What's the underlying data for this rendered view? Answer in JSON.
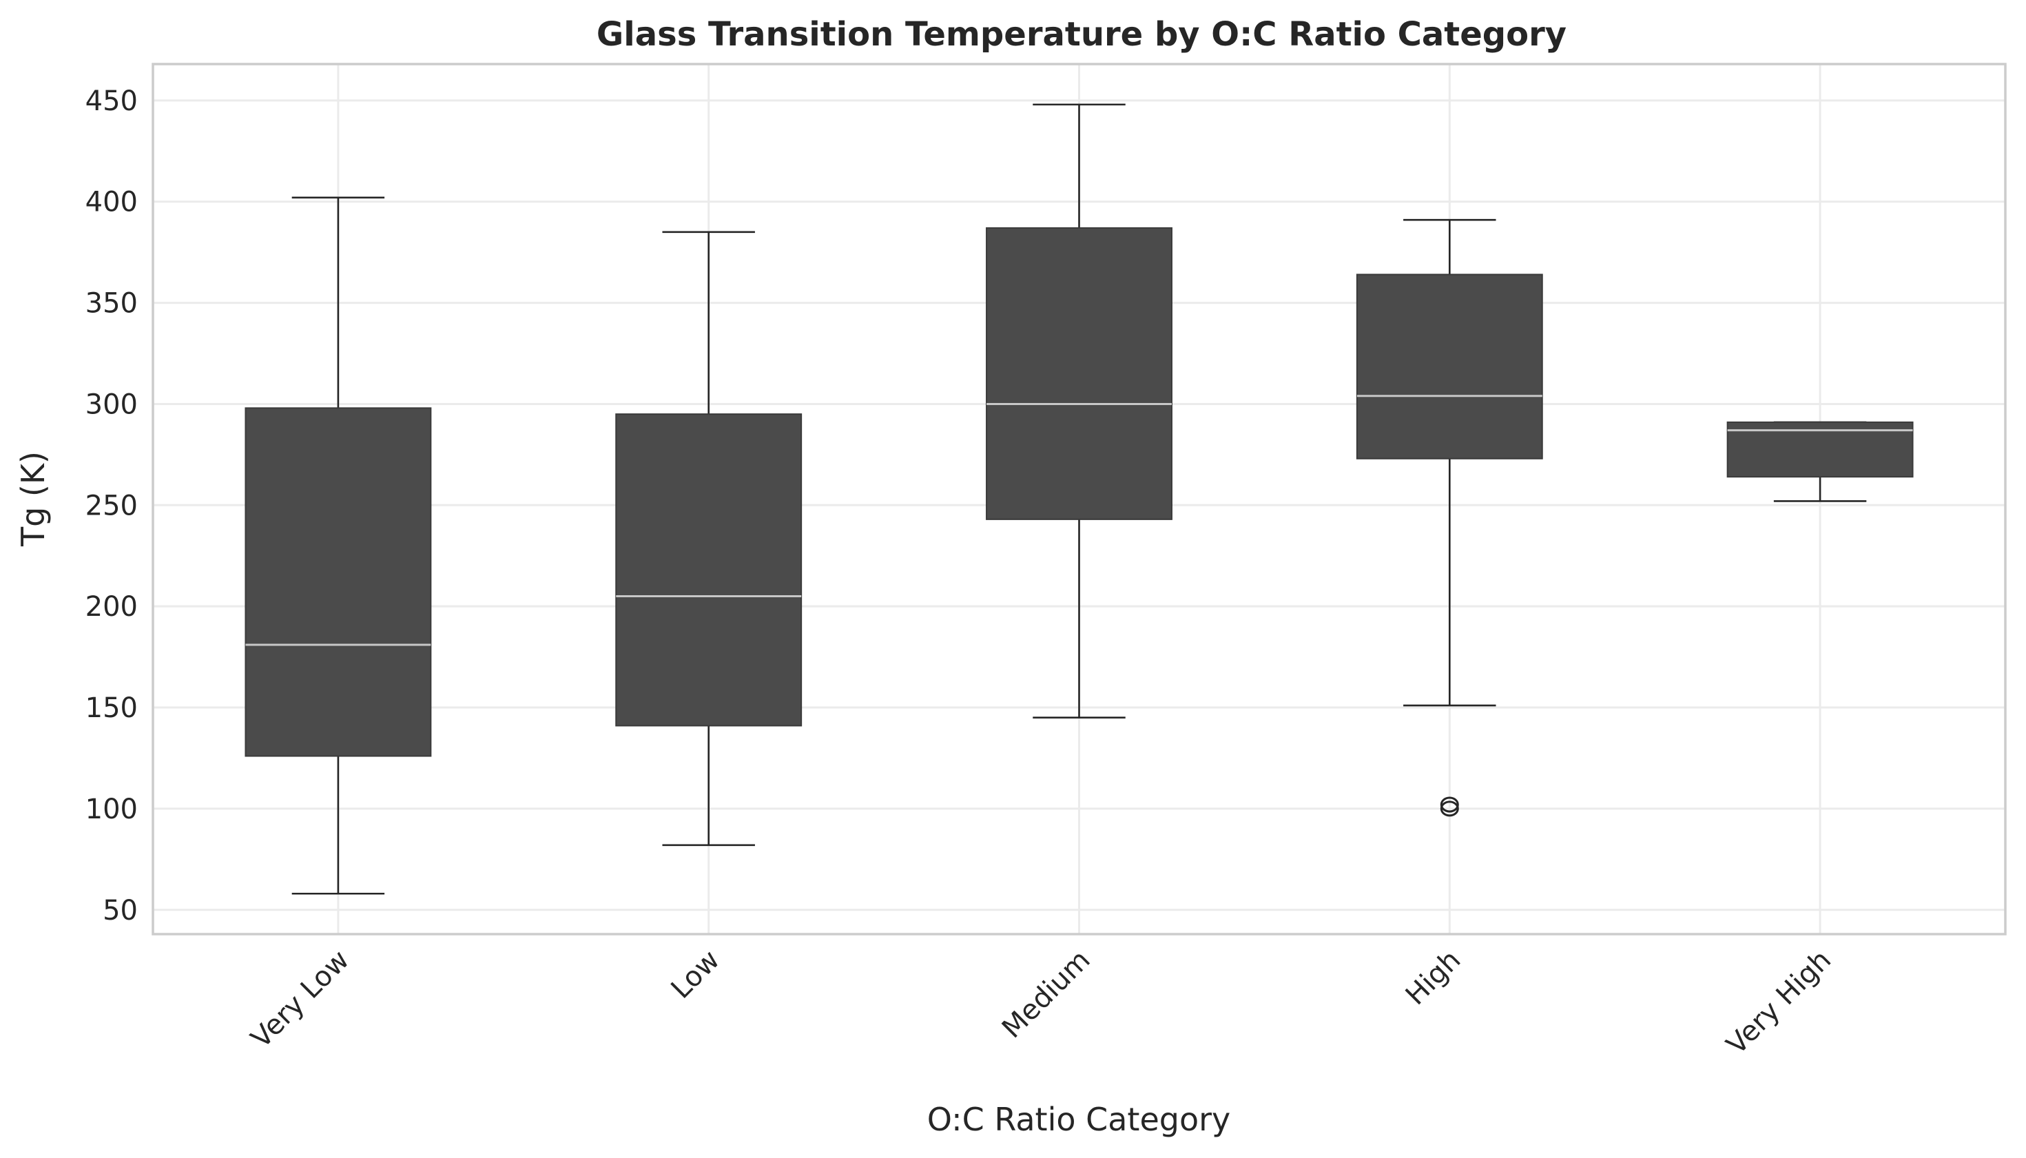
{
  "chart_data": {
    "type": "box",
    "title": "Glass Transition Temperature by O:C Ratio Category",
    "xlabel": "O:C Ratio Category",
    "ylabel": "Tg (K)",
    "ylim": [
      38,
      468
    ],
    "yticks": [
      50,
      100,
      150,
      200,
      250,
      300,
      350,
      400,
      450
    ],
    "grid": true,
    "box_color": "#4b4b4b",
    "median_color": "#c8c8c8",
    "categories": [
      "Very Low",
      "Low",
      "Medium",
      "High",
      "Very High"
    ],
    "boxes": [
      {
        "category": "Very Low",
        "whisker_low": 58,
        "q1": 126,
        "median": 181,
        "q3": 298,
        "whisker_high": 402,
        "outliers": []
      },
      {
        "category": "Low",
        "whisker_low": 82,
        "q1": 141,
        "median": 205,
        "q3": 295,
        "whisker_high": 385,
        "outliers": []
      },
      {
        "category": "Medium",
        "whisker_low": 145,
        "q1": 243,
        "median": 300,
        "q3": 387,
        "whisker_high": 448,
        "outliers": []
      },
      {
        "category": "High",
        "whisker_low": 151,
        "q1": 273,
        "median": 304,
        "q3": 364,
        "whisker_high": 391,
        "outliers": [
          100,
          102
        ]
      },
      {
        "category": "Very High",
        "whisker_low": 252,
        "q1": 264,
        "median": 287,
        "q3": 291,
        "whisker_high": 291,
        "outliers": []
      }
    ]
  }
}
